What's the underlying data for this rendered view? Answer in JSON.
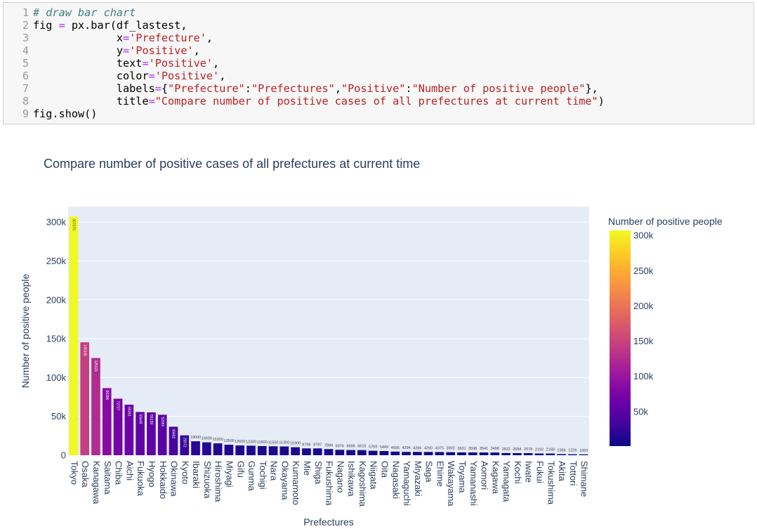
{
  "code_cell": {
    "line_numbers": [
      "1",
      "2",
      "3",
      "4",
      "5",
      "6",
      "7",
      "8",
      "9"
    ],
    "lines": [
      [
        {
          "t": "# draw bar chart",
          "c": "cm"
        }
      ],
      [
        {
          "t": "fig ",
          "c": ""
        },
        {
          "t": "=",
          "c": "kw"
        },
        {
          "t": " px.bar(df_lastest,",
          "c": ""
        }
      ],
      [
        {
          "t": "             x",
          "c": ""
        },
        {
          "t": "=",
          "c": "kw"
        },
        {
          "t": "'Prefecture'",
          "c": "st"
        },
        {
          "t": ",",
          "c": ""
        }
      ],
      [
        {
          "t": "             y",
          "c": ""
        },
        {
          "t": "=",
          "c": "kw"
        },
        {
          "t": "'Positive'",
          "c": "st"
        },
        {
          "t": ",",
          "c": ""
        }
      ],
      [
        {
          "t": "             text",
          "c": ""
        },
        {
          "t": "=",
          "c": "kw"
        },
        {
          "t": "'Positive'",
          "c": "st"
        },
        {
          "t": ",",
          "c": ""
        }
      ],
      [
        {
          "t": "             color",
          "c": ""
        },
        {
          "t": "=",
          "c": "kw"
        },
        {
          "t": "'Positive'",
          "c": "st"
        },
        {
          "t": ",",
          "c": ""
        }
      ],
      [
        {
          "t": "             labels",
          "c": ""
        },
        {
          "t": "=",
          "c": "kw"
        },
        {
          "t": "{",
          "c": ""
        },
        {
          "t": "\"Prefecture\"",
          "c": "st"
        },
        {
          "t": ":",
          "c": ""
        },
        {
          "t": "\"Prefectures\"",
          "c": "st"
        },
        {
          "t": ",",
          "c": ""
        },
        {
          "t": "\"Positive\"",
          "c": "st"
        },
        {
          "t": ":",
          "c": ""
        },
        {
          "t": "\"Number of positive people\"",
          "c": "st"
        },
        {
          "t": "},",
          "c": ""
        }
      ],
      [
        {
          "t": "             title",
          "c": ""
        },
        {
          "t": "=",
          "c": "kw"
        },
        {
          "t": "\"Compare number of positive cases of all prefectures at current time\"",
          "c": "st"
        },
        {
          "t": ")",
          "c": ""
        }
      ],
      [
        {
          "t": "fig.show()",
          "c": ""
        }
      ]
    ]
  },
  "chart_data": {
    "type": "bar",
    "title": "Compare number of positive cases of all prefectures at current time",
    "xlabel": "Prefectures",
    "ylabel": "Number of positive people",
    "ylim": [
      0,
      320000
    ],
    "grid": true,
    "categories": [
      "Tokyo",
      "Osaka",
      "Kanagawa",
      "Saitama",
      "Chiba",
      "Aichi",
      "Fukuoka",
      "Hyogo",
      "Hokkaido",
      "Okinawa",
      "Kyoto",
      "Ibaraki",
      "Shizuoka",
      "Hiroshima",
      "Miyagi",
      "Gifu",
      "Gunma",
      "Tochigi",
      "Nara",
      "Okayama",
      "Kumamoto",
      "Mie",
      "Shiga",
      "Fukushima",
      "Nagano",
      "Ishikawa",
      "Kagoshima",
      "Niigata",
      "Oita",
      "Nagasaki",
      "Yamaguchi",
      "Miyazaki",
      "Saga",
      "Ehime",
      "Wakayama",
      "Toyama",
      "Yamanashi",
      "Aomori",
      "Kagawa",
      "Yamagata",
      "Kochi",
      "Iwate",
      "Fukui",
      "Tokushima",
      "Akita",
      "Tottori",
      "Shimane"
    ],
    "values": [
      307070,
      145345,
      125121,
      86396,
      72727,
      65061,
      55649,
      55139,
      52061,
      36682,
      25572,
      18000,
      16600,
      15300,
      13500,
      12600,
      12300,
      11800,
      11500,
      11300,
      10300,
      8796,
      8787,
      7884,
      6976,
      6698,
      6615,
      5769,
      5449,
      4656,
      4294,
      4286,
      4260,
      4075,
      3902,
      3631,
      3598,
      3541,
      3496,
      2822,
      2684,
      2678,
      2192,
      2168,
      1384,
      1226,
      1063
    ],
    "text_labels": [
      "307070",
      "145345",
      "125121",
      "86396",
      "72727",
      "65061",
      "55649",
      "55139",
      "52061",
      "36682",
      "25572",
      "18000",
      "16600",
      "15300",
      "13500",
      "12600",
      "12300",
      "11800",
      "11500",
      "11300",
      "10300",
      "8796",
      "8787",
      "7884",
      "6976",
      "6698",
      "6615",
      "5769",
      "5449",
      "4656",
      "4294",
      "4286",
      "4260",
      "4075",
      "3902",
      "3631",
      "3598",
      "3541",
      "3496",
      "2822",
      "2684",
      "2678",
      "2192",
      "2168",
      "1384",
      "1226",
      "1063"
    ],
    "y_ticks": [
      {
        "value": 0,
        "label": "0"
      },
      {
        "value": 50000,
        "label": "50k"
      },
      {
        "value": 100000,
        "label": "100k"
      },
      {
        "value": 150000,
        "label": "150k"
      },
      {
        "value": 200000,
        "label": "200k"
      },
      {
        "value": 250000,
        "label": "250k"
      },
      {
        "value": 300000,
        "label": "300k"
      }
    ],
    "colorbar": {
      "title": "Number of positive people",
      "range": [
        1063,
        307070
      ],
      "ticks": [
        {
          "value": 50000,
          "label": "50k"
        },
        {
          "value": 100000,
          "label": "100k"
        },
        {
          "value": 150000,
          "label": "150k"
        },
        {
          "value": 200000,
          "label": "200k"
        },
        {
          "value": 250000,
          "label": "250k"
        },
        {
          "value": 300000,
          "label": "300k"
        }
      ],
      "colorscale": [
        "#0d0887",
        "#46039f",
        "#7201a8",
        "#9c179e",
        "#bd3786",
        "#d8576b",
        "#ed7953",
        "#fb9f3a",
        "#fdca26",
        "#f0f921"
      ]
    },
    "colors": {
      "plot_bg": "#e5ecf6",
      "grid": "#ffffff",
      "axis_text": "#2a3f5f"
    }
  }
}
